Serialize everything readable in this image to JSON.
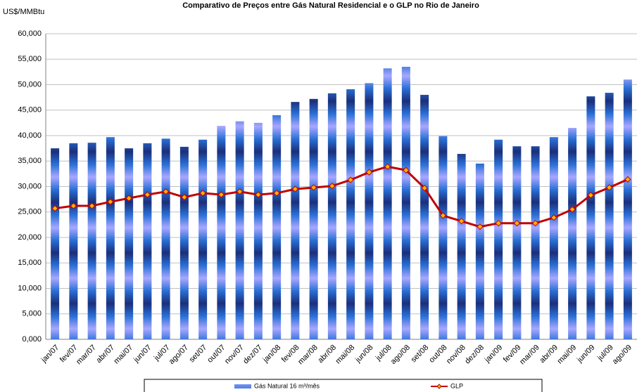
{
  "chart_data": {
    "type": "bar",
    "title": "Comparativo de Preços entre Gás Natural Residencial e o GLP no Rio de Janeiro",
    "y_label": "US$/MMBtu",
    "categories": [
      "jan/07",
      "fev/07",
      "mar/07",
      "abr/07",
      "mai/07",
      "jun/07",
      "jul/07",
      "ago/07",
      "set/07",
      "out/07",
      "nov/07",
      "dez/07",
      "jan/08",
      "fev/08",
      "mar/08",
      "abr/08",
      "mai/08",
      "jun/08",
      "jul/08",
      "ago/08",
      "set/08",
      "out/08",
      "nov/08",
      "dez/08",
      "jan/09",
      "fev/09",
      "mar/09",
      "abr/09",
      "mai/09",
      "jun/09",
      "jul/09",
      "ago/09"
    ],
    "series": [
      {
        "name": "Gás Natural 16 m³/mês",
        "type": "bar",
        "color": "#2a6fd6",
        "values": [
          37.5,
          38.5,
          38.6,
          39.7,
          37.5,
          38.5,
          39.4,
          37.8,
          39.2,
          41.9,
          42.8,
          42.5,
          44.0,
          46.6,
          47.2,
          48.3,
          49.1,
          50.3,
          53.2,
          53.5,
          48.0,
          39.9,
          36.4,
          34.5,
          39.2,
          37.9,
          37.9,
          39.7,
          41.5,
          47.7,
          48.4,
          51.0
        ]
      },
      {
        "name": "GLP",
        "type": "line",
        "color": "#c00000",
        "marker_color": "#ffb000",
        "values": [
          25.7,
          26.2,
          26.2,
          27.0,
          27.7,
          28.4,
          29.0,
          27.9,
          28.7,
          28.4,
          29.0,
          28.4,
          28.7,
          29.5,
          29.8,
          30.1,
          31.3,
          32.8,
          33.9,
          33.2,
          29.7,
          24.3,
          23.2,
          22.1,
          22.8,
          22.8,
          22.8,
          23.9,
          25.5,
          28.3,
          29.8,
          31.4
        ]
      }
    ],
    "ylim": [
      0,
      60
    ],
    "yticks": [
      {
        "value": 0,
        "label": "0,000"
      },
      {
        "value": 5,
        "label": "5,000"
      },
      {
        "value": 10,
        "label": "10,000"
      },
      {
        "value": 15,
        "label": "15,000"
      },
      {
        "value": 20,
        "label": "20,000"
      },
      {
        "value": 25,
        "label": "25,000"
      },
      {
        "value": 30,
        "label": "30,000"
      },
      {
        "value": 35,
        "label": "35,000"
      },
      {
        "value": 40,
        "label": "40,000"
      },
      {
        "value": 45,
        "label": "45,000"
      },
      {
        "value": 50,
        "label": "50,000"
      },
      {
        "value": 55,
        "label": "55,000"
      },
      {
        "value": 60,
        "label": "60,000"
      }
    ],
    "grid": true
  }
}
